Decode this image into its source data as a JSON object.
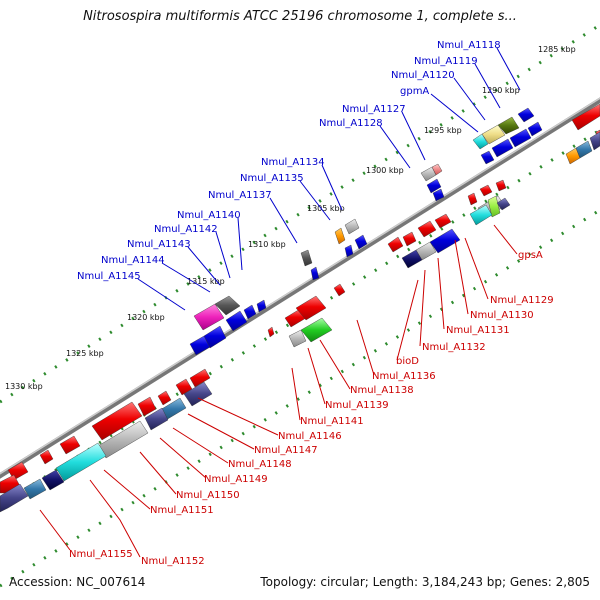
{
  "title": "Nitrosospira multiformis ATCC 25196 chromosome 1, complete s...",
  "footer": {
    "accession": "Accession: NC_007614",
    "topology": "Topology: circular; Length: 3,184,243 bp; Genes: 2,805"
  },
  "scale_ticks": [
    "1285 kbp",
    "1290 kbp",
    "1295 kbp",
    "1300 kbp",
    "1305 kbp",
    "1310 kbp",
    "1315 kbp",
    "1320 kbp",
    "1325 kbp",
    "1330 kbp"
  ],
  "genes_top": [
    "Nmul_A1118",
    "Nmul_A1119",
    "Nmul_A1120",
    "gpmA",
    "Nmul_A1127",
    "Nmul_A1128",
    "Nmul_A1134",
    "Nmul_A1135",
    "Nmul_A1137",
    "Nmul_A1140",
    "Nmul_A1142",
    "Nmul_A1143",
    "Nmul_A1144",
    "Nmul_A1145"
  ],
  "genes_bottom": [
    "gpsA",
    "Nmul_A1129",
    "Nmul_A1130",
    "Nmul_A1131",
    "Nmul_A1132",
    "bioD",
    "Nmul_A1136",
    "Nmul_A1138",
    "Nmul_A1139",
    "Nmul_A1141",
    "Nmul_A1146",
    "Nmul_A1147",
    "Nmul_A1148",
    "Nmul_A1149",
    "Nmul_A1150",
    "Nmul_A1151",
    "Nmul_A1152",
    "Nmul_A1155"
  ],
  "colors": {
    "forward_label": "#0000cc",
    "reverse_label": "#cc0000",
    "tick": "#2e8b2e",
    "backbone": "#888888"
  }
}
